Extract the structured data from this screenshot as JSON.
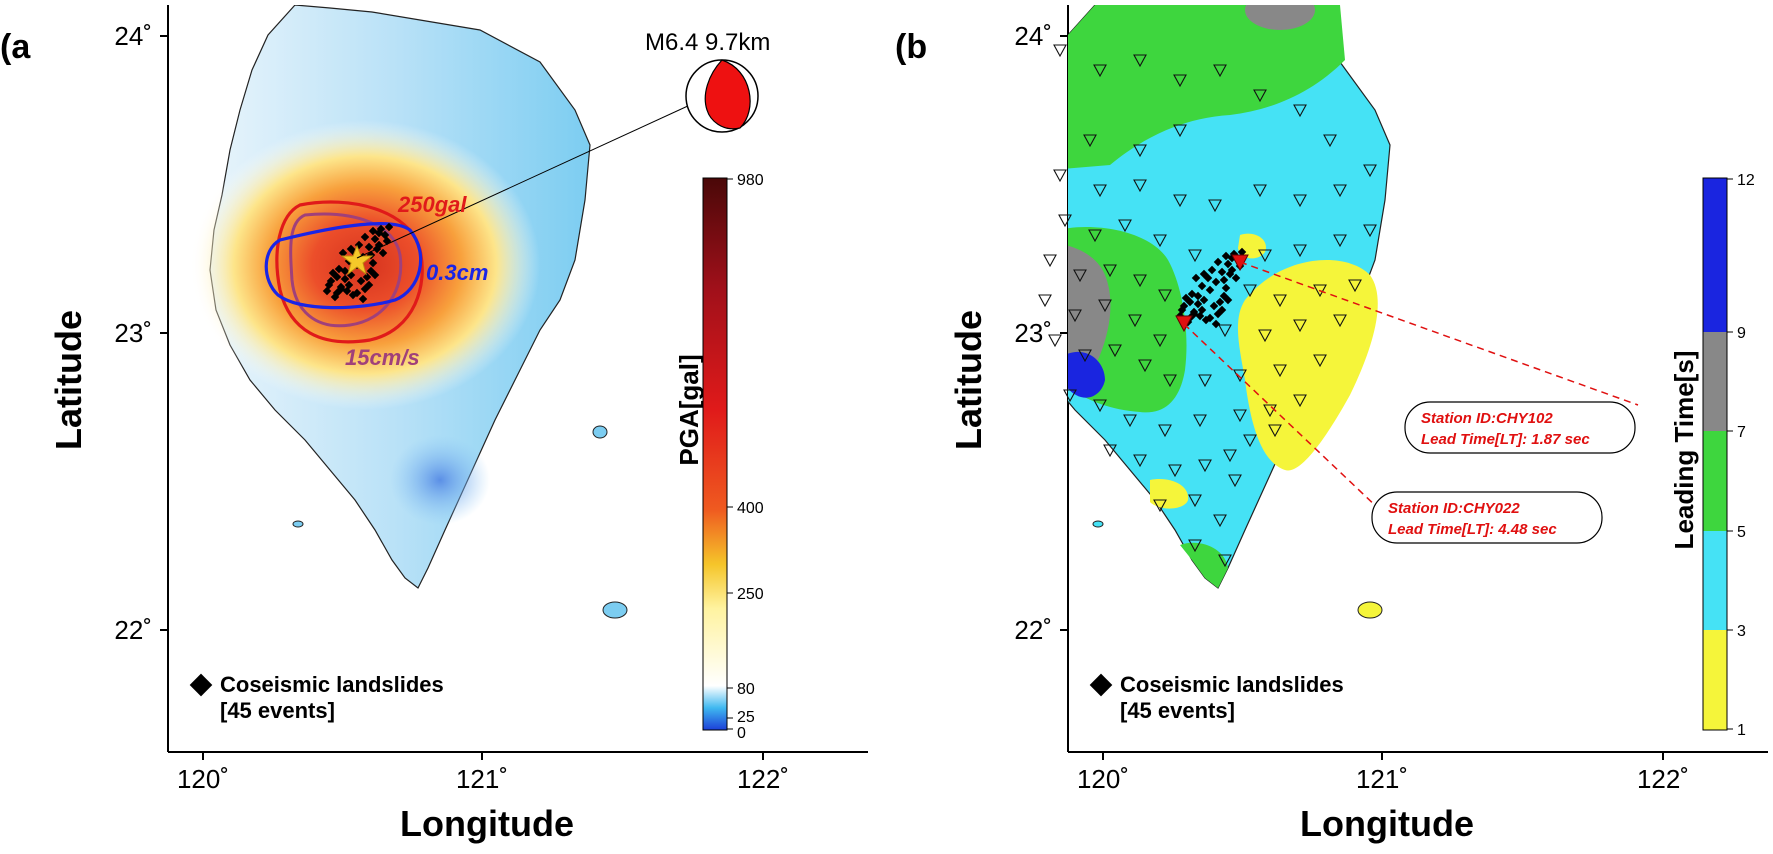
{
  "colors": {
    "pga_low": "#2f6bdc",
    "pga_mid": "#ffffff",
    "pga_high": "#e52a1e",
    "pga_max": "#5a0c0c",
    "lt_yellow": "#f5f53a",
    "lt_cyan": "#45e2f5",
    "lt_green": "#3ed63e",
    "lt_gray": "#888888",
    "lt_blue": "#1a25e0",
    "pga_contour": "#e01a1a",
    "pgd_contour": "#1a24e6",
    "pgv_contour": "#a0407a",
    "callout": "#e01010"
  },
  "panels": [
    {
      "letter": "(a",
      "xlabel": "Longitude",
      "ylabel": "Latitude",
      "x_ticks": [
        "120˚",
        "121˚",
        "122˚"
      ],
      "y_ticks": [
        "24˚",
        "23˚",
        "22˚"
      ],
      "quake_label": "M6.4 9.7km",
      "contours": [
        {
          "label": "250gal",
          "kind": "pga"
        },
        {
          "label": "0.3cm",
          "kind": "pgd"
        },
        {
          "label": "15cm/s",
          "kind": "pgv"
        }
      ],
      "colorbar": {
        "title": "PGA[gal]",
        "ticks": [
          "980",
          "400",
          "250",
          "80",
          "25",
          "0"
        ]
      },
      "legend": {
        "icon": "diamond-icon",
        "line1": "Coseismic landslides",
        "line2": "[45 events]"
      }
    },
    {
      "letter": "(b",
      "xlabel": "Longitude",
      "ylabel": "Latitude",
      "x_ticks": [
        "120˚",
        "121˚",
        "122˚"
      ],
      "y_ticks": [
        "24˚",
        "23˚",
        "22˚"
      ],
      "colorbar": {
        "title": "Leading Time[s]",
        "ticks": [
          "12",
          "9",
          "7",
          "5",
          "3",
          "1"
        ]
      },
      "callouts": [
        {
          "line1": "Station ID:CHY102",
          "line2": "Lead Time[LT]: 1.87 sec"
        },
        {
          "line1": "Station ID:CHY022",
          "line2": "Lead Time[LT]: 4.48 sec"
        }
      ],
      "legend": {
        "icon": "diamond-icon",
        "line1": "Coseismic landslides",
        "line2": "[45 events]"
      }
    }
  ]
}
